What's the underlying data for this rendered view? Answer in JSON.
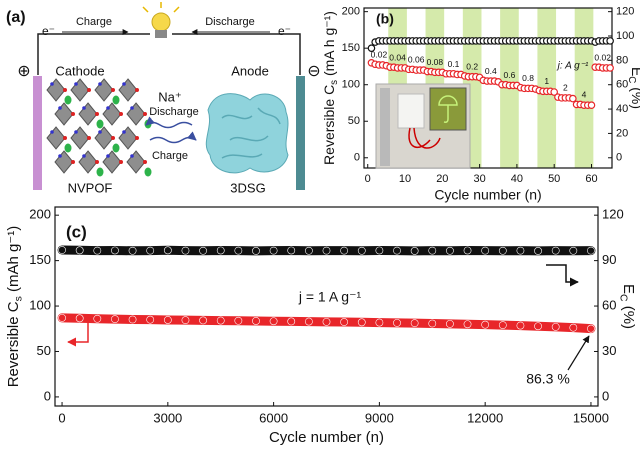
{
  "schematic": {
    "panel_label": "(a)",
    "electron_left": "e⁻",
    "electron_right": "e⁻",
    "charge_top": "Charge",
    "discharge_top": "Discharge",
    "positive": "⊕",
    "negative": "⊖",
    "cathode": "Cathode",
    "anode": "Anode",
    "ion": "Na⁺",
    "discharge_mid": "Discharge",
    "charge_mid": "Charge",
    "cathode_material": "NVPOF",
    "anode_material": "3DSG"
  },
  "chart_data": [
    {
      "type": "scatter",
      "panel_label": "(b)",
      "xlabel": "Cycle number (n)",
      "ylabel": {
        "text": "Reversible C",
        "sub": "s",
        "unit": " (mA h g⁻¹)"
      },
      "y2label": {
        "text": "E",
        "sub": "C",
        "unit": " (%)"
      },
      "xlim": [
        -1,
        65.5
      ],
      "ylim": [
        -14,
        205
      ],
      "y2lim": [
        -8.4,
        123
      ],
      "xticks": [
        0,
        10,
        20,
        30,
        40,
        50,
        60
      ],
      "yticks": [
        0,
        50,
        100,
        150,
        200
      ],
      "y2ticks": [
        0,
        20,
        40,
        60,
        80,
        100,
        120
      ],
      "band_color": "#d5eaab",
      "rate_unit": "j: A g⁻¹",
      "rate_steps": [
        {
          "label": "0.02",
          "range": [
            0.5,
            5.5
          ]
        },
        {
          "label": "0.04",
          "range": [
            5.5,
            10.5
          ]
        },
        {
          "label": "0.06",
          "range": [
            10.5,
            15.5
          ]
        },
        {
          "label": "0.08",
          "range": [
            15.5,
            20.5
          ]
        },
        {
          "label": "0.1",
          "range": [
            20.5,
            25.5
          ]
        },
        {
          "label": "0.2",
          "range": [
            25.5,
            30.5
          ]
        },
        {
          "label": "0.4",
          "range": [
            30.5,
            35.5
          ]
        },
        {
          "label": "0.6",
          "range": [
            35.5,
            40.5
          ]
        },
        {
          "label": "0.8",
          "range": [
            40.5,
            45.5
          ]
        },
        {
          "label": "1",
          "range": [
            45.5,
            50.5
          ]
        },
        {
          "label": "2",
          "range": [
            50.5,
            55.5
          ]
        },
        {
          "label": "4",
          "range": [
            55.5,
            60.5
          ]
        },
        {
          "label": "0.02",
          "range": [
            60.5,
            65.5
          ]
        }
      ],
      "x": [
        1,
        2,
        3,
        4,
        5,
        6,
        7,
        8,
        9,
        10,
        11,
        12,
        13,
        14,
        15,
        16,
        17,
        18,
        19,
        20,
        21,
        22,
        23,
        24,
        25,
        26,
        27,
        28,
        29,
        30,
        31,
        32,
        33,
        34,
        35,
        36,
        37,
        38,
        39,
        40,
        41,
        42,
        43,
        44,
        45,
        46,
        47,
        48,
        49,
        50,
        51,
        52,
        53,
        54,
        55,
        56,
        57,
        58,
        59,
        60,
        61,
        62,
        63,
        64,
        65
      ],
      "series": [
        {
          "color": "#e8262a",
          "axis": "y",
          "values": [
            130,
            128,
            127,
            127,
            126,
            124,
            124,
            123,
            123,
            123,
            121,
            121,
            120,
            120,
            120,
            118,
            118,
            117,
            117,
            117,
            115,
            115,
            115,
            114,
            114,
            112,
            111,
            111,
            111,
            110,
            106,
            105,
            105,
            105,
            104,
            100,
            100,
            99,
            99,
            99,
            96,
            95,
            95,
            95,
            94,
            92,
            91,
            91,
            91,
            90,
            83,
            82,
            82,
            82,
            81,
            73,
            73,
            72,
            72,
            72,
            124,
            124,
            123,
            123,
            123
          ]
        },
        {
          "color": "#111111",
          "axis": "y2",
          "values": [
            90,
            95,
            96,
            96,
            96,
            96,
            96,
            96,
            96,
            96,
            96,
            96,
            96,
            96,
            96,
            96,
            96,
            96,
            96,
            96,
            96,
            96,
            96,
            96,
            96,
            96,
            96,
            96,
            96,
            96,
            96,
            96,
            96,
            96,
            96,
            96,
            96,
            96,
            96,
            96,
            96,
            96,
            96,
            96,
            96,
            96,
            96,
            96,
            96,
            96,
            96,
            96,
            96,
            96,
            96,
            96,
            96,
            96,
            96,
            96,
            95,
            96,
            96,
            96,
            96
          ]
        }
      ]
    },
    {
      "type": "line",
      "panel_label": "(c)",
      "xlabel": "Cycle number (n)",
      "ylabel": {
        "text": "Reversible C",
        "sub": "s",
        "unit": " (mAh g⁻¹)"
      },
      "y2label": {
        "text": "E",
        "sub": "C",
        "unit": " (%)"
      },
      "xlim": [
        -200,
        15200
      ],
      "ylim": [
        -10,
        209
      ],
      "y2lim": [
        -6,
        125.4
      ],
      "xticks": [
        0,
        3000,
        6000,
        9000,
        12000,
        15000
      ],
      "yticks": [
        0,
        50,
        100,
        150,
        200
      ],
      "y2ticks": [
        0,
        30,
        60,
        90,
        120
      ],
      "annotations": [
        {
          "text": "j = 1 A g⁻¹"
        },
        {
          "text": "86.3 %"
        }
      ],
      "x": [
        0,
        500,
        1000,
        1500,
        2000,
        2500,
        3000,
        3500,
        4000,
        4500,
        5000,
        5500,
        6000,
        6500,
        7000,
        7500,
        8000,
        8500,
        9000,
        9500,
        10000,
        10500,
        11000,
        11500,
        12000,
        12500,
        13000,
        13500,
        14000,
        14500,
        15000
      ],
      "series": [
        {
          "color": "#e8262a",
          "axis": "y",
          "values": [
            87,
            86.5,
            86,
            85.6,
            85.2,
            85,
            84.7,
            84.5,
            84.2,
            84,
            83.8,
            83.6,
            83.3,
            83.1,
            82.9,
            82.6,
            82.4,
            82.1,
            81.8,
            81.5,
            81.2,
            80.8,
            80.4,
            80,
            79.5,
            79,
            78.5,
            77.8,
            77.1,
            76.2,
            75.1
          ]
        },
        {
          "color": "#111111",
          "axis": "y2",
          "values": [
            97,
            96.8,
            96.6,
            96.7,
            96.5,
            96.6,
            96.8,
            96.6,
            96.5,
            96.7,
            96.6,
            96.4,
            96.6,
            96.7,
            96.5,
            96.6,
            96.6,
            96.5,
            96.7,
            96.6,
            96.4,
            96.6,
            96.5,
            96.7,
            96.6,
            96.5,
            96.6,
            96.4,
            96.6,
            96.5,
            96.6
          ]
        }
      ]
    }
  ]
}
